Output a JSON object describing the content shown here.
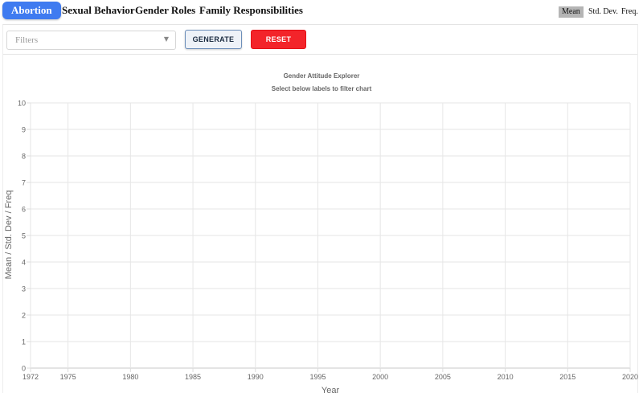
{
  "nav": {
    "tabs": [
      {
        "label": "Abortion",
        "active": true
      },
      {
        "label": "Sexual Behavior",
        "active": false
      },
      {
        "label": "Gender Roles",
        "active": false
      },
      {
        "label": "Family Responsibilities",
        "active": false
      }
    ],
    "metrics": [
      {
        "label": "Mean",
        "active": true
      },
      {
        "label": "Std. Dev.",
        "active": false
      },
      {
        "label": "Freq.",
        "active": false
      }
    ]
  },
  "controls": {
    "filter_placeholder": "Filters",
    "generate_label": "GENERATE",
    "reset_label": "RESET"
  },
  "colors": {
    "accent": "#3f7bf0",
    "reset": "#f3242a",
    "metric_active": "#b5b5b5"
  },
  "chart_data": {
    "type": "line",
    "title": "Gender Attitude Explorer",
    "subtitle": "Select below labels to filter chart",
    "xlabel": "Year",
    "ylabel": "Mean / Std. Dev / Freq",
    "xlim": [
      1972,
      2020
    ],
    "ylim": [
      0,
      10
    ],
    "x_ticks": [
      1972,
      1975,
      1980,
      1985,
      1990,
      1995,
      2000,
      2005,
      2010,
      2015,
      2020
    ],
    "y_ticks": [
      0,
      1,
      2,
      3,
      4,
      5,
      6,
      7,
      8,
      9,
      10
    ],
    "grid": true,
    "series": []
  }
}
